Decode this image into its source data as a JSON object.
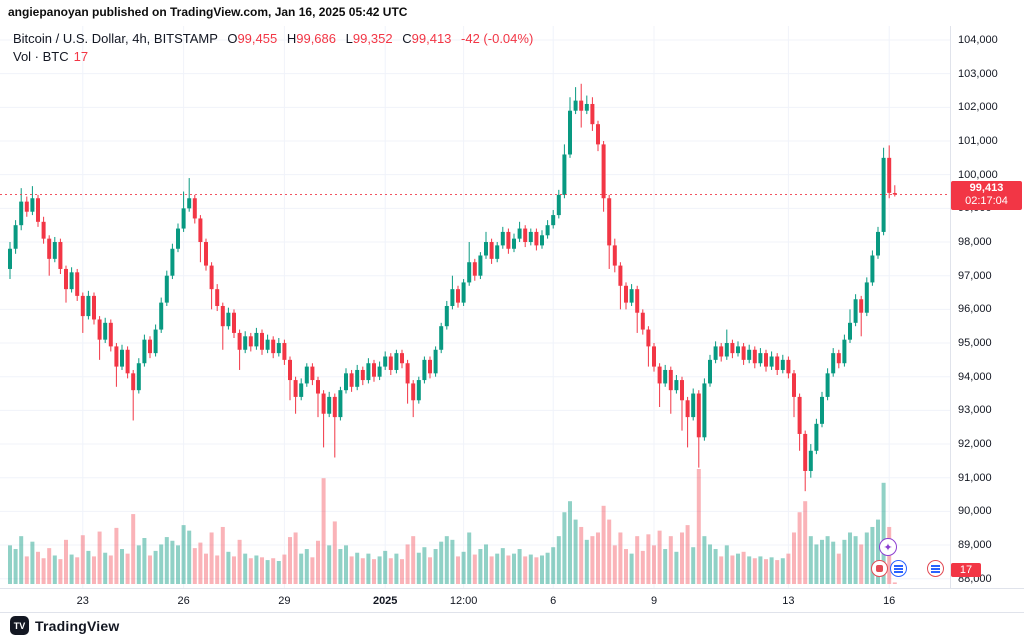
{
  "attribution": "angiepanoyan published on TradingView.com, Jan 16, 2025 05:42 UTC",
  "legend": {
    "symbol_title": "Bitcoin / U.S. Dollar, 4h, BITSTAMP",
    "o_label": "O",
    "o_value": "99,455",
    "h_label": "H",
    "h_value": "99,686",
    "l_label": "L",
    "l_value": "99,352",
    "c_label": "C",
    "c_value": "99,413",
    "change": "-42 (-0.04%)",
    "volume_label": "Vol · BTC",
    "volume_value": "17"
  },
  "price_scale": {
    "last_price_label": "99,413",
    "countdown": "02:17:04",
    "volume_badge": "17",
    "ticks": [
      {
        "label": "104,000",
        "value": 104000
      },
      {
        "label": "103,000",
        "value": 103000
      },
      {
        "label": "102,000",
        "value": 102000
      },
      {
        "label": "101,000",
        "value": 101000
      },
      {
        "label": "100,000",
        "value": 100000
      },
      {
        "label": "99,000",
        "value": 99000
      },
      {
        "label": "98,000",
        "value": 98000
      },
      {
        "label": "97,000",
        "value": 97000
      },
      {
        "label": "96,000",
        "value": 96000
      },
      {
        "label": "95,000",
        "value": 95000
      },
      {
        "label": "94,000",
        "value": 94000
      },
      {
        "label": "93,000",
        "value": 93000
      },
      {
        "label": "92,000",
        "value": 92000
      },
      {
        "label": "91,000",
        "value": 91000
      },
      {
        "label": "90,000",
        "value": 90000
      },
      {
        "label": "89,000",
        "value": 89000
      },
      {
        "label": "88,000",
        "value": 88000
      }
    ]
  },
  "time_scale": {
    "ticks": [
      {
        "label": "23",
        "index": 13
      },
      {
        "label": "26",
        "index": 31
      },
      {
        "label": "29",
        "index": 49
      },
      {
        "label": "2025",
        "index": 67,
        "bold": true
      },
      {
        "label": "12:00",
        "index": 81
      },
      {
        "label": "6",
        "index": 97
      },
      {
        "label": "9",
        "index": 115
      },
      {
        "label": "13",
        "index": 139
      },
      {
        "label": "16",
        "index": 157
      }
    ]
  },
  "footer": {
    "logo_text": "TradingView"
  },
  "colors": {
    "up": "#089981",
    "down": "#f23645",
    "vol_up": "rgba(8,153,129,0.45)",
    "vol_down": "rgba(242,54,69,0.38)",
    "grid": "#f0f3fa",
    "price_line": "#f23645"
  },
  "chart_data": {
    "type": "candlestick+volume",
    "title": "Bitcoin / U.S. Dollar",
    "interval": "4h",
    "exchange": "BITSTAMP",
    "price_axis_range": [
      87800,
      104450
    ],
    "last_close": 99413,
    "current_bar": {
      "open": 99455,
      "high": 99686,
      "low": 99352,
      "close": 99413,
      "change": -42,
      "change_pct": -0.04,
      "volume": 17
    },
    "ohlc": [
      [
        97200,
        98000,
        96900,
        97800
      ],
      [
        97800,
        98650,
        97650,
        98500
      ],
      [
        98500,
        99600,
        98350,
        99200
      ],
      [
        99200,
        99350,
        98750,
        98900
      ],
      [
        98900,
        99660,
        98800,
        99300
      ],
      [
        99300,
        99400,
        98450,
        98600
      ],
      [
        98600,
        98750,
        97950,
        98100
      ],
      [
        98100,
        98200,
        97000,
        97500
      ],
      [
        97500,
        98150,
        97400,
        98000
      ],
      [
        98000,
        98100,
        97050,
        97200
      ],
      [
        97200,
        97300,
        96200,
        96600
      ],
      [
        96600,
        97250,
        96500,
        97100
      ],
      [
        97100,
        97200,
        96250,
        96400
      ],
      [
        96400,
        96500,
        95300,
        95800
      ],
      [
        95800,
        96550,
        95700,
        96400
      ],
      [
        96400,
        96500,
        95550,
        95700
      ],
      [
        95700,
        95800,
        94500,
        95100
      ],
      [
        95100,
        95750,
        95000,
        95600
      ],
      [
        95600,
        95700,
        94750,
        94900
      ],
      [
        94900,
        95000,
        93700,
        94300
      ],
      [
        94300,
        94950,
        94200,
        94800
      ],
      [
        94800,
        94900,
        93950,
        94100
      ],
      [
        94100,
        94200,
        92700,
        93600
      ],
      [
        93600,
        94550,
        93500,
        94400
      ],
      [
        94400,
        95250,
        94300,
        95100
      ],
      [
        95100,
        95200,
        94550,
        94700
      ],
      [
        94700,
        95550,
        94600,
        95400
      ],
      [
        95400,
        96350,
        95300,
        96200
      ],
      [
        96200,
        97150,
        96100,
        97000
      ],
      [
        97000,
        97950,
        96900,
        97800
      ],
      [
        97800,
        98550,
        97700,
        98400
      ],
      [
        98400,
        99500,
        98300,
        99000
      ],
      [
        99000,
        99900,
        98900,
        99300
      ],
      [
        99300,
        99400,
        98550,
        98700
      ],
      [
        98700,
        98800,
        97400,
        98000
      ],
      [
        98000,
        98100,
        97150,
        97300
      ],
      [
        97300,
        97400,
        96000,
        96600
      ],
      [
        96600,
        96750,
        95950,
        96100
      ],
      [
        96100,
        96200,
        94800,
        95500
      ],
      [
        95500,
        96050,
        95400,
        95900
      ],
      [
        95900,
        96000,
        95150,
        95300
      ],
      [
        95300,
        95400,
        94200,
        94800
      ],
      [
        94800,
        95350,
        94700,
        95200
      ],
      [
        95200,
        95300,
        94750,
        94900
      ],
      [
        94900,
        95450,
        94800,
        95300
      ],
      [
        95300,
        95400,
        94650,
        94800
      ],
      [
        94800,
        95250,
        94700,
        95100
      ],
      [
        95100,
        95200,
        94550,
        94700
      ],
      [
        94700,
        95150,
        94600,
        95000
      ],
      [
        95000,
        95100,
        94350,
        94500
      ],
      [
        94500,
        94600,
        93300,
        93900
      ],
      [
        93900,
        94000,
        92900,
        93400
      ],
      [
        93400,
        93950,
        93300,
        93800
      ],
      [
        93800,
        94400,
        93700,
        94300
      ],
      [
        94300,
        94400,
        93750,
        93900
      ],
      [
        93900,
        94000,
        92800,
        93500
      ],
      [
        93500,
        93600,
        91900,
        92900
      ],
      [
        92900,
        93550,
        92800,
        93400
      ],
      [
        93400,
        93500,
        91600,
        92800
      ],
      [
        92800,
        93700,
        92700,
        93600
      ],
      [
        93600,
        94250,
        93500,
        94100
      ],
      [
        94100,
        94200,
        93550,
        93700
      ],
      [
        93700,
        94350,
        93600,
        94200
      ],
      [
        94200,
        94300,
        93750,
        93900
      ],
      [
        93900,
        94550,
        93800,
        94400
      ],
      [
        94400,
        94500,
        93850,
        94000
      ],
      [
        94000,
        94450,
        93900,
        94300
      ],
      [
        94300,
        94750,
        94200,
        94600
      ],
      [
        94600,
        94700,
        94050,
        94200
      ],
      [
        94200,
        94800,
        94100,
        94700
      ],
      [
        94700,
        94800,
        94250,
        94400
      ],
      [
        94400,
        94500,
        93200,
        93800
      ],
      [
        93800,
        93900,
        92800,
        93300
      ],
      [
        93300,
        94000,
        93200,
        93900
      ],
      [
        93900,
        94600,
        93800,
        94500
      ],
      [
        94500,
        94600,
        93950,
        94100
      ],
      [
        94100,
        94900,
        94000,
        94800
      ],
      [
        94800,
        95600,
        94700,
        95500
      ],
      [
        95500,
        96250,
        95400,
        96100
      ],
      [
        96100,
        97000,
        96000,
        96600
      ],
      [
        96600,
        96700,
        96050,
        96200
      ],
      [
        96200,
        96900,
        96100,
        96800
      ],
      [
        96800,
        98000,
        96700,
        97400
      ],
      [
        97400,
        97500,
        96850,
        97000
      ],
      [
        97000,
        97700,
        96900,
        97600
      ],
      [
        97600,
        98300,
        97500,
        98000
      ],
      [
        98000,
        98100,
        97350,
        97500
      ],
      [
        97500,
        98000,
        97400,
        97900
      ],
      [
        97900,
        98450,
        97800,
        98300
      ],
      [
        98300,
        98400,
        97650,
        97800
      ],
      [
        97800,
        98250,
        97700,
        98100
      ],
      [
        98100,
        98600,
        98000,
        98400
      ],
      [
        98400,
        98500,
        97850,
        98000
      ],
      [
        98000,
        98400,
        97900,
        98300
      ],
      [
        98300,
        98400,
        97750,
        97900
      ],
      [
        97900,
        98350,
        97800,
        98200
      ],
      [
        98200,
        98650,
        98100,
        98500
      ],
      [
        98500,
        98950,
        98400,
        98800
      ],
      [
        98800,
        99550,
        98700,
        99400
      ],
      [
        99400,
        100900,
        99300,
        100600
      ],
      [
        100600,
        102300,
        100500,
        101900
      ],
      [
        101900,
        102600,
        101800,
        102200
      ],
      [
        102200,
        102700,
        101400,
        101900
      ],
      [
        101900,
        102350,
        101800,
        102100
      ],
      [
        102100,
        102300,
        101300,
        101500
      ],
      [
        101500,
        101600,
        100700,
        100900
      ],
      [
        100900,
        101000,
        98900,
        99300
      ],
      [
        99300,
        99400,
        97200,
        97900
      ],
      [
        97900,
        98100,
        97100,
        97300
      ],
      [
        97300,
        97400,
        96000,
        96700
      ],
      [
        96700,
        96800,
        96000,
        96200
      ],
      [
        96200,
        96750,
        96100,
        96600
      ],
      [
        96600,
        96700,
        95300,
        95900
      ],
      [
        95900,
        96000,
        95250,
        95400
      ],
      [
        95400,
        95500,
        94300,
        94900
      ],
      [
        94900,
        95000,
        94150,
        94300
      ],
      [
        94300,
        94400,
        93100,
        93800
      ],
      [
        93800,
        94350,
        93700,
        94200
      ],
      [
        94200,
        94300,
        92900,
        93600
      ],
      [
        93600,
        94050,
        93500,
        93900
      ],
      [
        93900,
        94000,
        92400,
        93300
      ],
      [
        93300,
        93400,
        91900,
        92800
      ],
      [
        92800,
        93650,
        92700,
        93500
      ],
      [
        93500,
        93600,
        91300,
        92200
      ],
      [
        92200,
        93950,
        92100,
        93800
      ],
      [
        93800,
        94650,
        93700,
        94500
      ],
      [
        94500,
        95050,
        94400,
        94900
      ],
      [
        94900,
        95000,
        94450,
        94600
      ],
      [
        94600,
        95400,
        94500,
        95000
      ],
      [
        95000,
        95100,
        94550,
        94700
      ],
      [
        94700,
        95050,
        94600,
        94900
      ],
      [
        94900,
        95000,
        94350,
        94500
      ],
      [
        94500,
        94950,
        94400,
        94800
      ],
      [
        94800,
        94900,
        94250,
        94400
      ],
      [
        94400,
        94850,
        94300,
        94700
      ],
      [
        94700,
        94800,
        94150,
        94300
      ],
      [
        94300,
        94750,
        94200,
        94600
      ],
      [
        94600,
        94700,
        94050,
        94200
      ],
      [
        94200,
        94650,
        94100,
        94500
      ],
      [
        94500,
        94600,
        93950,
        94100
      ],
      [
        94100,
        94200,
        92800,
        93400
      ],
      [
        93400,
        93500,
        91800,
        92300
      ],
      [
        92300,
        92400,
        90600,
        91200
      ],
      [
        91200,
        92000,
        91000,
        91800
      ],
      [
        91800,
        92750,
        91700,
        92600
      ],
      [
        92600,
        93550,
        92500,
        93400
      ],
      [
        93400,
        94250,
        93300,
        94100
      ],
      [
        94100,
        94850,
        94000,
        94700
      ],
      [
        94700,
        94800,
        94250,
        94400
      ],
      [
        94400,
        95250,
        94300,
        95100
      ],
      [
        95100,
        96000,
        95000,
        95600
      ],
      [
        95600,
        96450,
        95500,
        96300
      ],
      [
        96300,
        96400,
        95200,
        95900
      ],
      [
        95900,
        96950,
        95800,
        96800
      ],
      [
        96800,
        97750,
        96700,
        97600
      ],
      [
        97600,
        98450,
        97500,
        98300
      ],
      [
        98300,
        100800,
        98200,
        100500
      ],
      [
        100500,
        100870,
        99300,
        99460
      ],
      [
        99455,
        99686,
        99352,
        99413
      ]
    ],
    "volume": [
      420,
      380,
      520,
      300,
      460,
      350,
      280,
      390,
      310,
      270,
      480,
      320,
      290,
      530,
      360,
      300,
      570,
      340,
      310,
      610,
      380,
      330,
      760,
      420,
      500,
      310,
      360,
      430,
      510,
      470,
      420,
      640,
      580,
      390,
      450,
      330,
      560,
      310,
      620,
      350,
      300,
      480,
      330,
      280,
      310,
      290,
      260,
      280,
      250,
      320,
      510,
      560,
      330,
      380,
      290,
      470,
      1150,
      420,
      680,
      380,
      420,
      300,
      340,
      280,
      330,
      270,
      300,
      360,
      280,
      330,
      270,
      430,
      520,
      340,
      400,
      290,
      380,
      460,
      520,
      480,
      300,
      350,
      560,
      320,
      380,
      430,
      300,
      330,
      390,
      310,
      330,
      380,
      300,
      320,
      290,
      310,
      340,
      400,
      520,
      780,
      900,
      700,
      620,
      480,
      520,
      560,
      850,
      700,
      420,
      560,
      380,
      330,
      520,
      360,
      540,
      420,
      580,
      380,
      520,
      350,
      560,
      640,
      400,
      1250,
      520,
      430,
      380,
      300,
      420,
      310,
      330,
      350,
      300,
      280,
      300,
      270,
      290,
      260,
      280,
      330,
      560,
      780,
      900,
      520,
      430,
      480,
      520,
      460,
      330,
      480,
      560,
      520,
      430,
      560,
      620,
      700,
      1100,
      620,
      17
    ]
  }
}
